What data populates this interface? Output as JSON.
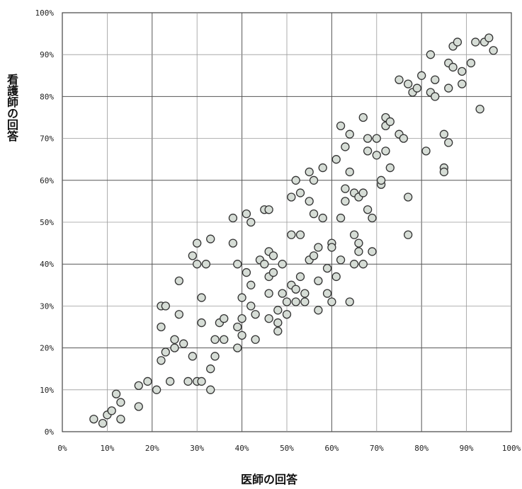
{
  "chart_data": {
    "type": "scatter",
    "title": "",
    "xlabel": "医師の回答",
    "ylabel": "看護師の回答",
    "xlim": [
      0,
      100
    ],
    "ylim": [
      0,
      100
    ],
    "x_ticks": [
      "0%",
      "10%",
      "20%",
      "30%",
      "40%",
      "50%",
      "60%",
      "70%",
      "80%",
      "90%",
      "100%"
    ],
    "y_ticks": [
      "0%",
      "10%",
      "20%",
      "30%",
      "40%",
      "50%",
      "60%",
      "70%",
      "80%",
      "90%",
      "100%"
    ],
    "grid": true,
    "marker": "hollow-circle",
    "marker_fill": "#d6ddd6",
    "marker_stroke": "#333333",
    "points": [
      [
        7,
        3
      ],
      [
        9,
        2
      ],
      [
        10,
        4
      ],
      [
        11,
        5
      ],
      [
        12,
        9
      ],
      [
        13,
        7
      ],
      [
        13,
        3
      ],
      [
        17,
        6
      ],
      [
        17,
        11
      ],
      [
        19,
        12
      ],
      [
        21,
        10
      ],
      [
        22,
        30
      ],
      [
        23,
        30
      ],
      [
        22,
        17
      ],
      [
        22,
        25
      ],
      [
        23,
        19
      ],
      [
        24,
        12
      ],
      [
        25,
        22
      ],
      [
        25,
        20
      ],
      [
        26,
        28
      ],
      [
        26,
        36
      ],
      [
        27,
        21
      ],
      [
        28,
        12
      ],
      [
        29,
        18
      ],
      [
        29,
        42
      ],
      [
        30,
        12
      ],
      [
        30,
        40
      ],
      [
        30,
        45
      ],
      [
        31,
        12
      ],
      [
        31,
        26
      ],
      [
        31,
        32
      ],
      [
        32,
        40
      ],
      [
        33,
        10
      ],
      [
        33,
        15
      ],
      [
        33,
        46
      ],
      [
        34,
        18
      ],
      [
        34,
        22
      ],
      [
        35,
        26
      ],
      [
        36,
        22
      ],
      [
        36,
        27
      ],
      [
        38,
        51
      ],
      [
        38,
        45
      ],
      [
        39,
        20
      ],
      [
        39,
        25
      ],
      [
        39,
        40
      ],
      [
        40,
        27
      ],
      [
        40,
        32
      ],
      [
        40,
        23
      ],
      [
        41,
        52
      ],
      [
        41,
        38
      ],
      [
        42,
        50
      ],
      [
        42,
        30
      ],
      [
        42,
        35
      ],
      [
        43,
        28
      ],
      [
        43,
        22
      ],
      [
        44,
        41
      ],
      [
        45,
        40
      ],
      [
        45,
        53
      ],
      [
        46,
        53
      ],
      [
        46,
        43
      ],
      [
        46,
        33
      ],
      [
        46,
        27
      ],
      [
        46,
        37
      ],
      [
        47,
        38
      ],
      [
        47,
        42
      ],
      [
        48,
        24
      ],
      [
        48,
        26
      ],
      [
        48,
        29
      ],
      [
        49,
        33
      ],
      [
        49,
        40
      ],
      [
        50,
        28
      ],
      [
        50,
        31
      ],
      [
        51,
        35
      ],
      [
        51,
        47
      ],
      [
        51,
        56
      ],
      [
        52,
        60
      ],
      [
        52,
        34
      ],
      [
        52,
        31
      ],
      [
        53,
        57
      ],
      [
        53,
        37
      ],
      [
        53,
        47
      ],
      [
        54,
        33
      ],
      [
        54,
        31
      ],
      [
        55,
        41
      ],
      [
        55,
        55
      ],
      [
        55,
        62
      ],
      [
        56,
        42
      ],
      [
        56,
        52
      ],
      [
        56,
        60
      ],
      [
        57,
        36
      ],
      [
        57,
        29
      ],
      [
        57,
        44
      ],
      [
        58,
        51
      ],
      [
        58,
        63
      ],
      [
        59,
        33
      ],
      [
        59,
        39
      ],
      [
        60,
        45
      ],
      [
        60,
        44
      ],
      [
        60,
        31
      ],
      [
        61,
        37
      ],
      [
        61,
        65
      ],
      [
        62,
        73
      ],
      [
        62,
        51
      ],
      [
        62,
        41
      ],
      [
        63,
        55
      ],
      [
        63,
        58
      ],
      [
        63,
        68
      ],
      [
        64,
        62
      ],
      [
        64,
        71
      ],
      [
        64,
        31
      ],
      [
        65,
        40
      ],
      [
        65,
        47
      ],
      [
        65,
        57
      ],
      [
        66,
        43
      ],
      [
        66,
        45
      ],
      [
        66,
        56
      ],
      [
        67,
        40
      ],
      [
        67,
        75
      ],
      [
        67,
        57
      ],
      [
        68,
        53
      ],
      [
        68,
        70
      ],
      [
        68,
        67
      ],
      [
        69,
        51
      ],
      [
        69,
        43
      ],
      [
        70,
        66
      ],
      [
        70,
        70
      ],
      [
        71,
        59
      ],
      [
        71,
        60
      ],
      [
        72,
        73
      ],
      [
        72,
        75
      ],
      [
        72,
        67
      ],
      [
        73,
        63
      ],
      [
        73,
        74
      ],
      [
        75,
        84
      ],
      [
        75,
        71
      ],
      [
        76,
        70
      ],
      [
        77,
        83
      ],
      [
        77,
        47
      ],
      [
        77,
        56
      ],
      [
        78,
        81
      ],
      [
        79,
        82
      ],
      [
        80,
        85
      ],
      [
        81,
        67
      ],
      [
        82,
        81
      ],
      [
        82,
        90
      ],
      [
        83,
        80
      ],
      [
        83,
        84
      ],
      [
        85,
        63
      ],
      [
        85,
        71
      ],
      [
        85,
        62
      ],
      [
        86,
        82
      ],
      [
        86,
        88
      ],
      [
        86,
        69
      ],
      [
        87,
        87
      ],
      [
        87,
        92
      ],
      [
        88,
        93
      ],
      [
        89,
        86
      ],
      [
        89,
        83
      ],
      [
        91,
        88
      ],
      [
        92,
        93
      ],
      [
        93,
        77
      ],
      [
        94,
        93
      ],
      [
        95,
        94
      ],
      [
        96,
        91
      ]
    ]
  }
}
